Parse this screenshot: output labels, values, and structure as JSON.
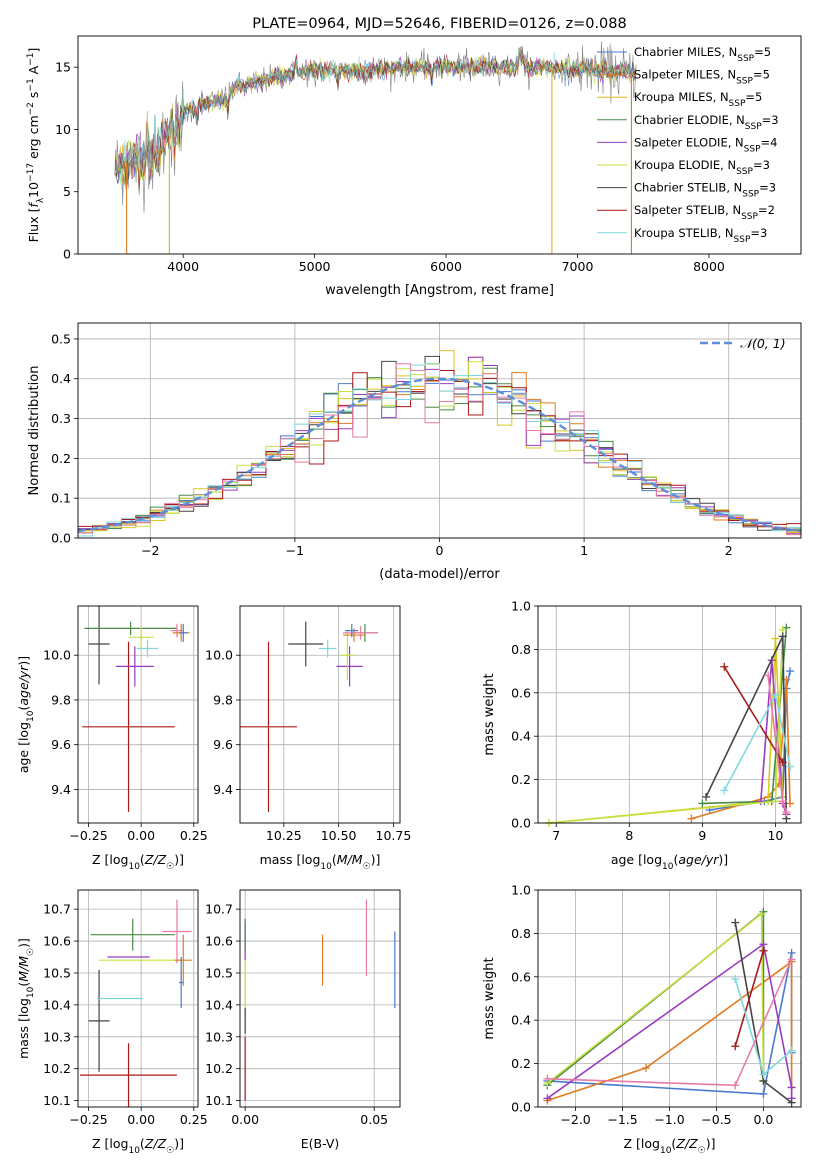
{
  "chart_data": [
    {
      "id": "spectrum",
      "type": "line",
      "title": "PLATE=0964, MJD=52646, FIBERID=0126, z=0.088",
      "xlabel": "wavelength [Angstrom, rest frame]",
      "ylabel": "Flux [f_λ 10^-17 erg cm^-2 s^-1 A^-1]",
      "xlim": [
        3200,
        8700
      ],
      "ylim": [
        0,
        17.5
      ],
      "xticks": [
        4000,
        5000,
        6000,
        7000,
        8000
      ],
      "yticks": [
        0,
        5,
        10,
        15
      ],
      "grid": false,
      "legend_position": "right",
      "legend": [
        "Chabrier MILES, N_SSP=5",
        "Salpeter MILES, N_SSP=5",
        "Kroupa MILES, N_SSP=5",
        "Chabrier ELODIE, N_SSP=3",
        "Salpeter ELODIE, N_SSP=4",
        "Kroupa ELODIE, N_SSP=3",
        "Chabrier STELIB, N_SSP=3",
        "Salpeter STELIB, N_SSP=2",
        "Kroupa STELIB, N_SSP=3"
      ],
      "continuum": {
        "x": [
          3480,
          3600,
          3700,
          3800,
          3900,
          4000,
          4100,
          4200,
          4300,
          4400,
          4500,
          4700,
          4900,
          5100,
          5300,
          5500,
          5700,
          5900,
          6100,
          6300,
          6500,
          6700,
          6900,
          7100,
          7300,
          7450
        ],
        "y": [
          6.8,
          7.6,
          7.5,
          8.0,
          10.0,
          11.3,
          11.9,
          12.2,
          12.3,
          13.4,
          13.6,
          14.2,
          14.6,
          14.8,
          14.7,
          14.8,
          15.0,
          15.1,
          15.0,
          15.1,
          15.0,
          15.0,
          14.9,
          14.8,
          14.6,
          14.5
        ]
      }
    },
    {
      "id": "residuals",
      "type": "histogram",
      "xlabel": "(data-model)/error",
      "ylabel": "Normed distribution",
      "xlim": [
        -2.5,
        2.5
      ],
      "ylim": [
        0,
        0.54
      ],
      "xticks": [
        -2,
        -1,
        0,
        1,
        2
      ],
      "yticks": [
        0.0,
        0.1,
        0.2,
        0.3,
        0.4,
        0.5
      ],
      "grid": true,
      "legend_position": "top-right",
      "reference_curve": {
        "name": "𝒩(0, 1)",
        "mean": 0,
        "sigma": 1,
        "peak": 0.4
      },
      "bin_width": 0.1
    },
    {
      "id": "age-vs-Z",
      "type": "errorbar",
      "xlabel": "Z [log10(Z/Z☉)]",
      "ylabel": "age [log10(age/yr)]",
      "xlim": [
        -0.3,
        0.27
      ],
      "ylim": [
        9.25,
        10.22
      ],
      "xticks": [
        -0.25,
        0.0,
        0.25
      ],
      "yticks": [
        9.4,
        9.6,
        9.8,
        10.0
      ],
      "grid": true,
      "points": [
        {
          "x": -0.06,
          "y": 9.68,
          "xerr": 0.22,
          "yerr": 0.38,
          "color": "#a81818"
        },
        {
          "x": -0.03,
          "y": 9.95,
          "xerr": 0.09,
          "yerr": 0.09,
          "color": "#9a3cc0"
        },
        {
          "x": -0.2,
          "y": 10.05,
          "xerr": 0.05,
          "yerr": 0.18,
          "color": "#444444"
        },
        {
          "x": -0.05,
          "y": 10.12,
          "xerr": 0.22,
          "yerr": 0.03,
          "color": "#4a8a4a"
        },
        {
          "x": 0.0,
          "y": 10.08,
          "xerr": 0.06,
          "yerr": 0.05,
          "color": "#c8e040"
        },
        {
          "x": 0.17,
          "y": 10.11,
          "xerr": 0.03,
          "yerr": 0.03,
          "color": "#e87ba6"
        },
        {
          "x": 0.19,
          "y": 10.1,
          "xerr": 0.04,
          "yerr": 0.04,
          "color": "#e07b20"
        },
        {
          "x": 0.2,
          "y": 10.1,
          "xerr": 0.02,
          "yerr": 0.04,
          "color": "#4a7ad0"
        },
        {
          "x": 0.03,
          "y": 10.03,
          "xerr": 0.05,
          "yerr": 0.04,
          "color": "#7fd8e0"
        }
      ]
    },
    {
      "id": "age-vs-mass",
      "type": "errorbar",
      "xlabel": "mass [log10(M/M☉)]",
      "ylabel": "",
      "xlim": [
        10.05,
        10.78
      ],
      "ylim": [
        9.25,
        10.22
      ],
      "xticks": [
        10.25,
        10.5,
        10.75
      ],
      "yticks": [
        9.4,
        9.6,
        9.8,
        10.0
      ],
      "grid": true,
      "points": [
        {
          "x": 10.18,
          "y": 9.68,
          "xerr": 0.13,
          "yerr": 0.38,
          "color": "#a81818"
        },
        {
          "x": 10.55,
          "y": 9.95,
          "xerr": 0.06,
          "yerr": 0.09,
          "color": "#9a3cc0"
        },
        {
          "x": 10.35,
          "y": 10.05,
          "xerr": 0.08,
          "yerr": 0.1,
          "color": "#444444"
        },
        {
          "x": 10.62,
          "y": 10.1,
          "xerr": 0.06,
          "yerr": 0.04,
          "color": "#4a8a4a"
        },
        {
          "x": 10.54,
          "y": 10.0,
          "xerr": 0.03,
          "yerr": 0.11,
          "color": "#c8e040"
        },
        {
          "x": 10.6,
          "y": 10.1,
          "xerr": 0.08,
          "yerr": 0.03,
          "color": "#e87ba6"
        },
        {
          "x": 10.57,
          "y": 10.09,
          "xerr": 0.05,
          "yerr": 0.03,
          "color": "#e07b20"
        },
        {
          "x": 10.56,
          "y": 10.11,
          "xerr": 0.03,
          "yerr": 0.03,
          "color": "#4a7ad0"
        },
        {
          "x": 10.45,
          "y": 10.03,
          "xerr": 0.04,
          "yerr": 0.04,
          "color": "#7fd8e0"
        }
      ]
    },
    {
      "id": "mass-weight-vs-age",
      "type": "line",
      "xlabel": "age [log10(age/yr)]",
      "ylabel": "mass weight",
      "xlim": [
        6.75,
        10.35
      ],
      "ylim": [
        0,
        1.0
      ],
      "xticks": [
        7,
        8,
        9,
        10
      ],
      "yticks": [
        0.0,
        0.2,
        0.4,
        0.6,
        0.8,
        1.0
      ],
      "grid": true,
      "series": [
        {
          "color": "#4a7ad0",
          "x": [
            9.1,
            9.85,
            10.1,
            10.15,
            10.2
          ],
          "y": [
            0.06,
            0.1,
            0.12,
            0.62,
            0.7
          ]
        },
        {
          "color": "#e07b20",
          "x": [
            8.85,
            9.9,
            10.05,
            10.15,
            10.2
          ],
          "y": [
            0.02,
            0.12,
            0.18,
            0.66,
            0.09
          ]
        },
        {
          "color": "#d8c820",
          "x": [
            6.9,
            9.9,
            10.0,
            10.1
          ],
          "y": [
            0.0,
            0.1,
            0.85,
            0.12
          ]
        },
        {
          "color": "#4a8a4a",
          "x": [
            9.0,
            9.95,
            10.15
          ],
          "y": [
            0.09,
            0.1,
            0.9
          ]
        },
        {
          "color": "#9a3cc0",
          "x": [
            9.8,
            9.95,
            10.1,
            10.15
          ],
          "y": [
            0.1,
            0.75,
            0.09,
            0.04
          ]
        },
        {
          "color": "#c8e040",
          "x": [
            6.9,
            10.0,
            10.1
          ],
          "y": [
            0.0,
            0.1,
            0.89
          ]
        },
        {
          "color": "#444444",
          "x": [
            9.05,
            10.1,
            10.15
          ],
          "y": [
            0.12,
            0.86,
            0.02
          ]
        },
        {
          "color": "#a81818",
          "x": [
            9.3,
            10.1
          ],
          "y": [
            0.72,
            0.28
          ]
        },
        {
          "color": "#7fd8e0",
          "x": [
            9.3,
            10.0,
            10.2
          ],
          "y": [
            0.15,
            0.59,
            0.26
          ]
        },
        {
          "color": "#e87ba6",
          "x": [
            9.9,
            10.1,
            10.15
          ],
          "y": [
            0.68,
            0.1,
            0.05
          ]
        }
      ]
    },
    {
      "id": "mass-vs-Z",
      "type": "errorbar",
      "xlabel": "Z [log10(Z/Z☉)]",
      "ylabel": "mass [log10(M/M☉)]",
      "xlim": [
        -0.3,
        0.27
      ],
      "ylim": [
        10.08,
        10.76
      ],
      "xticks": [
        -0.25,
        0.0,
        0.25
      ],
      "yticks": [
        10.1,
        10.2,
        10.3,
        10.4,
        10.5,
        10.6,
        10.7
      ],
      "grid": true,
      "points": [
        {
          "x": -0.06,
          "y": 10.18,
          "xerr": 0.23,
          "yerr": 0.1,
          "color": "#a81818"
        },
        {
          "x": -0.2,
          "y": 10.35,
          "xerr": 0.05,
          "yerr": 0.16,
          "color": "#444444"
        },
        {
          "x": -0.1,
          "y": 10.42,
          "xerr": 0.11,
          "yerr": 0.0,
          "color": "#7fd8e0"
        },
        {
          "x": -0.06,
          "y": 10.55,
          "xerr": 0.1,
          "yerr": 0.0,
          "color": "#9a3cc0"
        },
        {
          "x": -0.04,
          "y": 10.62,
          "xerr": 0.2,
          "yerr": 0.05,
          "color": "#4a8a4a"
        },
        {
          "x": -0.01,
          "y": 10.54,
          "xerr": 0.19,
          "yerr": 0.0,
          "color": "#c8e040"
        },
        {
          "x": 0.17,
          "y": 10.63,
          "xerr": 0.07,
          "yerr": 0.1,
          "color": "#e87ba6"
        },
        {
          "x": 0.2,
          "y": 10.54,
          "xerr": 0.04,
          "yerr": 0.08,
          "color": "#e07b20"
        },
        {
          "x": 0.19,
          "y": 10.47,
          "xerr": 0.01,
          "yerr": 0.08,
          "color": "#4a7ad0"
        }
      ]
    },
    {
      "id": "mass-vs-ebv",
      "type": "errorbar",
      "xlabel": "E(B-V)",
      "ylabel": "",
      "xlim": [
        -0.002,
        0.06
      ],
      "ylim": [
        10.08,
        10.76
      ],
      "xticks": [
        0.0,
        0.05
      ],
      "yticks": [
        10.1,
        10.2,
        10.3,
        10.4,
        10.5,
        10.6,
        10.7
      ],
      "grid": true,
      "points": [
        {
          "x": 0.0,
          "y": 10.2,
          "xerr": 0,
          "yerr": 0.1,
          "color": "#a81818"
        },
        {
          "x": 0.0,
          "y": 10.42,
          "xerr": 0,
          "yerr": 0.06,
          "color": "#7fd8e0"
        },
        {
          "x": 0.0,
          "y": 10.46,
          "xerr": 0,
          "yerr": 0.08,
          "color": "#c8e040"
        },
        {
          "x": 0.0,
          "y": 10.6,
          "xerr": 0,
          "yerr": 0.06,
          "color": "#9a3cc0"
        },
        {
          "x": 0.0,
          "y": 10.62,
          "xerr": 0,
          "yerr": 0.05,
          "color": "#4a8a4a"
        },
        {
          "x": 0.0,
          "y": 10.35,
          "xerr": 0,
          "yerr": 0.04,
          "color": "#444444"
        },
        {
          "x": 0.03,
          "y": 10.54,
          "xerr": 0,
          "yerr": 0.08,
          "color": "#e07b20"
        },
        {
          "x": 0.047,
          "y": 10.61,
          "xerr": 0,
          "yerr": 0.12,
          "color": "#e87ba6"
        },
        {
          "x": 0.058,
          "y": 10.51,
          "xerr": 0,
          "yerr": 0.12,
          "color": "#4a7ad0"
        }
      ]
    },
    {
      "id": "mass-weight-vs-Z",
      "type": "line",
      "xlabel": "Z [log10(Z/Z☉)]",
      "ylabel": "mass weight",
      "xlim": [
        -2.4,
        0.4
      ],
      "ylim": [
        0,
        1.0
      ],
      "xticks": [
        -2.0,
        -1.5,
        -1.0,
        -0.5,
        0.0
      ],
      "yticks": [
        0.0,
        0.2,
        0.4,
        0.6,
        0.8,
        1.0
      ],
      "grid": true,
      "series": [
        {
          "color": "#4a7ad0",
          "x": [
            -2.3,
            0.0,
            0.3,
            0.3
          ],
          "y": [
            0.12,
            0.06,
            0.71,
            0.25
          ]
        },
        {
          "color": "#e07b20",
          "x": [
            -2.3,
            -1.25,
            0.3,
            0.3
          ],
          "y": [
            0.03,
            0.18,
            0.67,
            0.09
          ]
        },
        {
          "color": "#4a8a4a",
          "x": [
            -2.3,
            0.0,
            0.0
          ],
          "y": [
            0.1,
            0.9,
            0.12
          ]
        },
        {
          "color": "#c8e040",
          "x": [
            -2.3,
            -0.02,
            0.0
          ],
          "y": [
            0.11,
            0.89,
            0.12
          ]
        },
        {
          "color": "#9a3cc0",
          "x": [
            -2.3,
            0.0,
            0.3,
            0.3
          ],
          "y": [
            0.04,
            0.75,
            0.09,
            0.04
          ]
        },
        {
          "color": "#444444",
          "x": [
            -0.3,
            0.0,
            0.3
          ],
          "y": [
            0.85,
            0.12,
            0.02
          ]
        },
        {
          "color": "#a81818",
          "x": [
            -0.3,
            0.0
          ],
          "y": [
            0.28,
            0.72
          ]
        },
        {
          "color": "#7fd8e0",
          "x": [
            -0.3,
            0.0,
            0.3
          ],
          "y": [
            0.59,
            0.15,
            0.26
          ]
        },
        {
          "color": "#e87ba6",
          "x": [
            -2.3,
            -0.3,
            0.3
          ],
          "y": [
            0.13,
            0.1,
            0.68
          ]
        }
      ]
    }
  ]
}
